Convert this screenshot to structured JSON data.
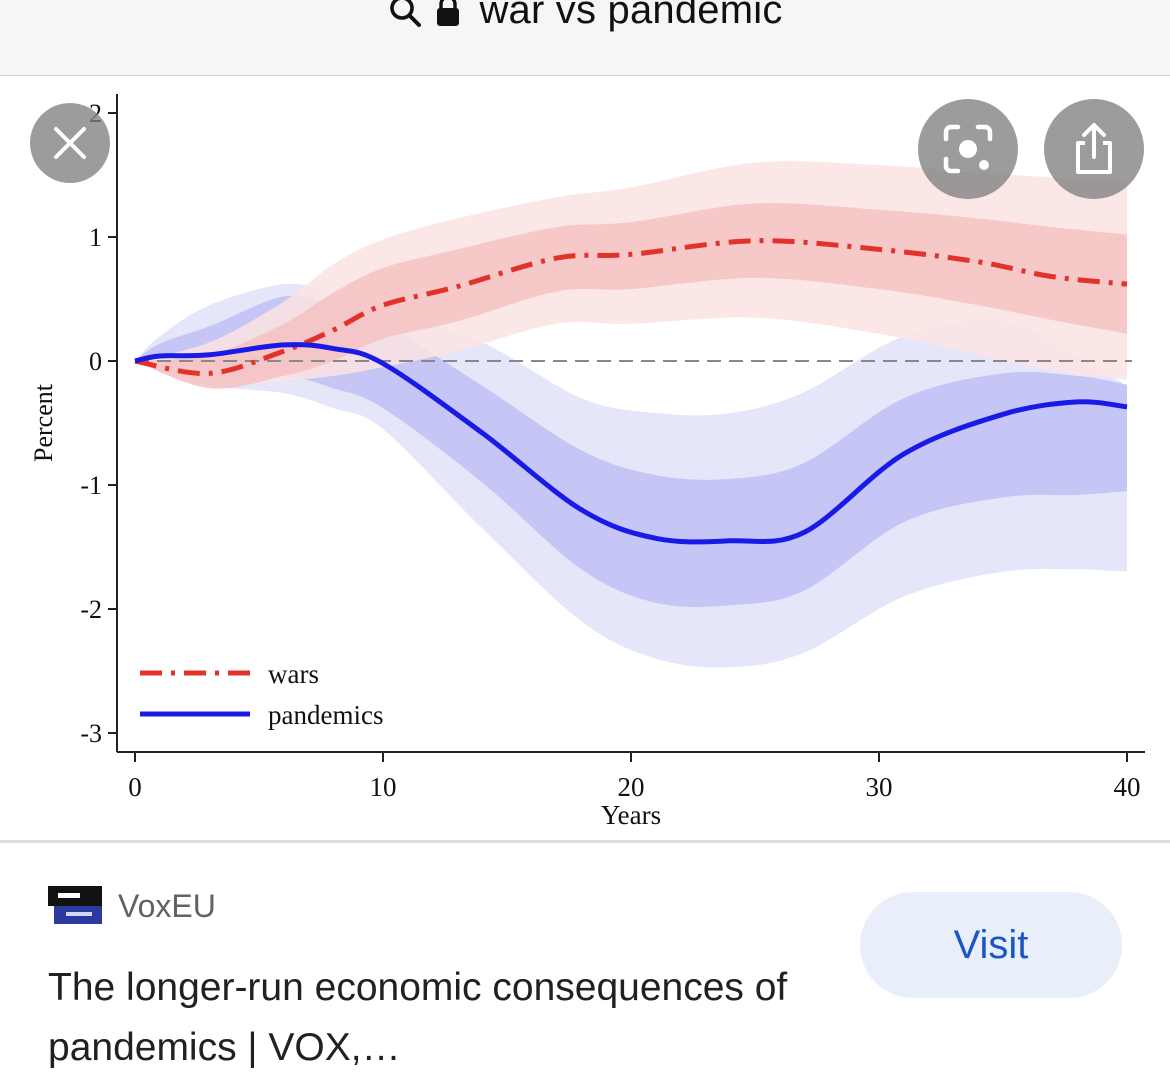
{
  "browser": {
    "search_query": "war vs pandemic"
  },
  "icons": {
    "search": "search-icon",
    "lock": "lock-icon",
    "close": "close-icon",
    "lens": "visual-search-icon",
    "share": "share-icon",
    "site": "voxeu-favicon"
  },
  "result": {
    "source": "VoxEU",
    "title": "The longer-run economic consequences of pandemics | VOX,…",
    "visit_label": "Visit"
  },
  "colors": {
    "wars_line": "#e2332b",
    "wars_band_inner": "#f5c2c2",
    "wars_band_outer": "#fbe3e3",
    "pandemics_line": "#1a1ae6",
    "pandemics_band_inner": "#c5c5f6",
    "pandemics_band_outer": "#e6e6fb",
    "visit_button_bg": "#e8effb",
    "visit_button_text": "#1a57c4"
  },
  "chart_data": {
    "type": "line",
    "title": "",
    "xlabel": "Years",
    "ylabel": "Percent",
    "xlim": [
      0,
      40
    ],
    "ylim": [
      -3,
      2
    ],
    "xticks": [
      0,
      10,
      20,
      30,
      40
    ],
    "yticks": [
      -3,
      -2,
      -1,
      0,
      1,
      2
    ],
    "reference_line": 0,
    "legend_position": "bottom-left",
    "series": [
      {
        "name": "wars",
        "style": "dash-dot",
        "x": [
          0,
          3,
          6,
          8,
          10,
          13,
          17,
          20,
          25,
          30,
          34,
          37,
          40
        ],
        "y": [
          0,
          -0.1,
          0.08,
          0.25,
          0.45,
          0.6,
          0.83,
          0.86,
          0.97,
          0.9,
          0.8,
          0.68,
          0.62
        ],
        "band_inner_upper": [
          0,
          0.05,
          0.3,
          0.55,
          0.75,
          0.9,
          1.08,
          1.12,
          1.27,
          1.22,
          1.15,
          1.08,
          1.02
        ],
        "band_inner_lower": [
          0,
          -0.22,
          -0.12,
          0.0,
          0.18,
          0.32,
          0.56,
          0.58,
          0.67,
          0.58,
          0.45,
          0.33,
          0.22
        ],
        "band_outer_upper": [
          0,
          0.15,
          0.48,
          0.78,
          0.98,
          1.15,
          1.32,
          1.4,
          1.6,
          1.58,
          1.52,
          1.48,
          1.45
        ],
        "band_outer_lower": [
          0,
          -0.18,
          -0.16,
          -0.12,
          -0.05,
          0.08,
          0.3,
          0.3,
          0.35,
          0.22,
          0.05,
          -0.08,
          -0.15
        ]
      },
      {
        "name": "pandemics",
        "style": "solid",
        "x": [
          0,
          1,
          3,
          6,
          8,
          10,
          14,
          18,
          21,
          24,
          27,
          31,
          35,
          38,
          40
        ],
        "y": [
          0,
          0.04,
          0.05,
          0.13,
          0.1,
          -0.02,
          -0.58,
          -1.2,
          -1.43,
          -1.45,
          -1.38,
          -0.75,
          -0.43,
          -0.33,
          -0.37
        ],
        "band_inner_upper": [
          0,
          0.14,
          0.28,
          0.52,
          0.45,
          0.3,
          -0.2,
          -0.72,
          -0.92,
          -0.95,
          -0.82,
          -0.3,
          -0.1,
          -0.12,
          -0.19
        ],
        "band_inner_lower": [
          0,
          -0.05,
          -0.12,
          -0.12,
          -0.22,
          -0.38,
          -0.98,
          -1.68,
          -1.95,
          -1.97,
          -1.85,
          -1.3,
          -1.1,
          -1.08,
          -1.05
        ],
        "band_outer_upper": [
          0,
          0.2,
          0.45,
          0.62,
          0.55,
          0.4,
          0.15,
          -0.3,
          -0.42,
          -0.42,
          -0.25,
          0.2,
          0.32,
          0.03,
          -0.2
        ],
        "band_outer_lower": [
          0,
          -0.08,
          -0.2,
          -0.26,
          -0.38,
          -0.55,
          -1.35,
          -2.1,
          -2.4,
          -2.47,
          -2.35,
          -1.9,
          -1.7,
          -1.68,
          -1.7
        ]
      }
    ]
  }
}
